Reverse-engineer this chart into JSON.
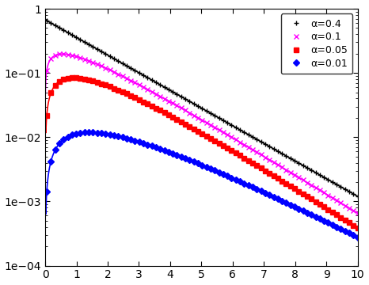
{
  "title": "",
  "xlabel": "",
  "ylabel": "",
  "xlim": [
    0,
    10
  ],
  "ylim_log": [
    -4,
    0
  ],
  "series": [
    {
      "alpha": 0.4,
      "label": "α=0.4",
      "color": "black",
      "marker": "+",
      "markersize": 5,
      "linewidth": 1.2,
      "A": 0.72,
      "rate": 0.69,
      "shape": -1,
      "x0_val": 0.72
    },
    {
      "alpha": 0.1,
      "label": "α=0.1",
      "color": "magenta",
      "marker": "x",
      "markersize": 5,
      "linewidth": 1.2,
      "A": 0.38,
      "rate": 1.15,
      "shape": 0.35,
      "x0_val": 0.055
    },
    {
      "alpha": 0.05,
      "label": "α=0.05",
      "color": "red",
      "marker": "s",
      "markersize": 4,
      "linewidth": 1.2,
      "A": 0.14,
      "rate": 0.92,
      "shape": 0.5,
      "x0_val": 0.03
    },
    {
      "alpha": 0.01,
      "label": "α=0.01",
      "color": "blue",
      "marker": "D",
      "markersize": 4,
      "linewidth": 1.2,
      "A": 0.025,
      "rate": 0.75,
      "shape": 0.8,
      "x0_val": 0.0009
    }
  ],
  "n_line_pts": 400,
  "n_marker_pts": 80,
  "background_color": "#ffffff",
  "tick_label_fontsize": 10,
  "legend_fontsize": 9,
  "legend_loc": "upper right",
  "marker_every": 5
}
